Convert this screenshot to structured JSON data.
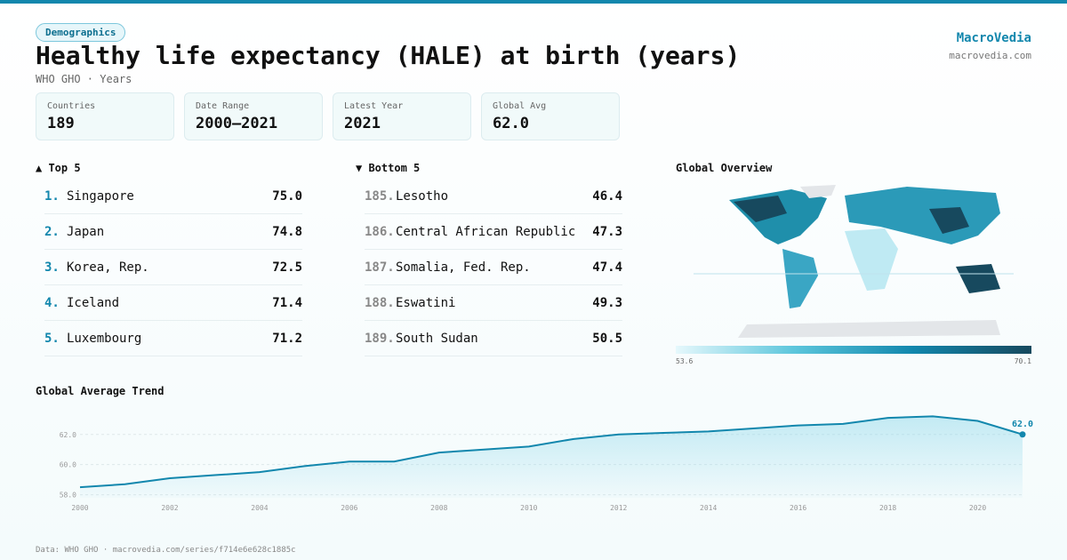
{
  "header": {
    "tag": "Demographics",
    "title": "Healthy life expectancy (HALE) at birth (years)",
    "subtitle": "WHO GHO · Years",
    "brand": "MacroVedia",
    "domain": "macrovedia.com"
  },
  "stats": [
    {
      "label": "Countries",
      "value": "189"
    },
    {
      "label": "Date Range",
      "value": "2000–2021"
    },
    {
      "label": "Latest Year",
      "value": "2021"
    },
    {
      "label": "Global Avg",
      "value": "62.0"
    }
  ],
  "top": {
    "title": "▲ Top 5",
    "rows": [
      {
        "rank": "1.",
        "name": "Singapore",
        "value": "75.0"
      },
      {
        "rank": "2.",
        "name": "Japan",
        "value": "74.8"
      },
      {
        "rank": "3.",
        "name": "Korea, Rep.",
        "value": "72.5"
      },
      {
        "rank": "4.",
        "name": "Iceland",
        "value": "71.4"
      },
      {
        "rank": "5.",
        "name": "Luxembourg",
        "value": "71.2"
      }
    ]
  },
  "bottom": {
    "title": "▼ Bottom 5",
    "rows": [
      {
        "rank": "185.",
        "name": "Lesotho",
        "value": "46.4"
      },
      {
        "rank": "186.",
        "name": "Central African Republic",
        "value": "47.3"
      },
      {
        "rank": "187.",
        "name": "Somalia, Fed. Rep.",
        "value": "47.4"
      },
      {
        "rank": "188.",
        "name": "Eswatini",
        "value": "49.3"
      },
      {
        "rank": "189.",
        "name": "South Sudan",
        "value": "50.5"
      }
    ]
  },
  "map": {
    "title": "Global Overview",
    "scale_min": "53.6",
    "scale_max": "70.1"
  },
  "chart_data": {
    "type": "line",
    "title": "Global Average Trend",
    "color": "#1287ad",
    "x": [
      2000,
      2001,
      2002,
      2003,
      2004,
      2005,
      2006,
      2007,
      2008,
      2009,
      2010,
      2011,
      2012,
      2013,
      2014,
      2015,
      2016,
      2017,
      2018,
      2019,
      2020,
      2021
    ],
    "values": [
      58.5,
      58.7,
      59.1,
      59.3,
      59.5,
      59.9,
      60.2,
      60.2,
      60.8,
      61.0,
      61.2,
      61.7,
      62.0,
      62.1,
      62.2,
      62.4,
      62.6,
      62.7,
      63.1,
      63.2,
      62.9,
      62.0
    ],
    "value_labels": [
      null,
      null,
      null,
      null,
      null,
      null,
      null,
      null,
      null,
      null,
      null,
      null,
      null,
      null,
      null,
      null,
      null,
      null,
      null,
      null,
      null,
      "62.0"
    ],
    "xlim": [
      2000,
      2021
    ],
    "xticks": [
      2000,
      2002,
      2004,
      2006,
      2008,
      2010,
      2012,
      2014,
      2016,
      2018,
      2020
    ],
    "ylim": [
      57.8,
      63.4
    ],
    "yticks": [
      {
        "value": 58,
        "label": "58.0"
      },
      {
        "value": 60,
        "label": "60.0"
      },
      {
        "value": 62,
        "label": "62.0"
      }
    ],
    "grid": true
  },
  "footer": "Data: WHO GHO · macrovedia.com/series/f714e6e628c1885c"
}
